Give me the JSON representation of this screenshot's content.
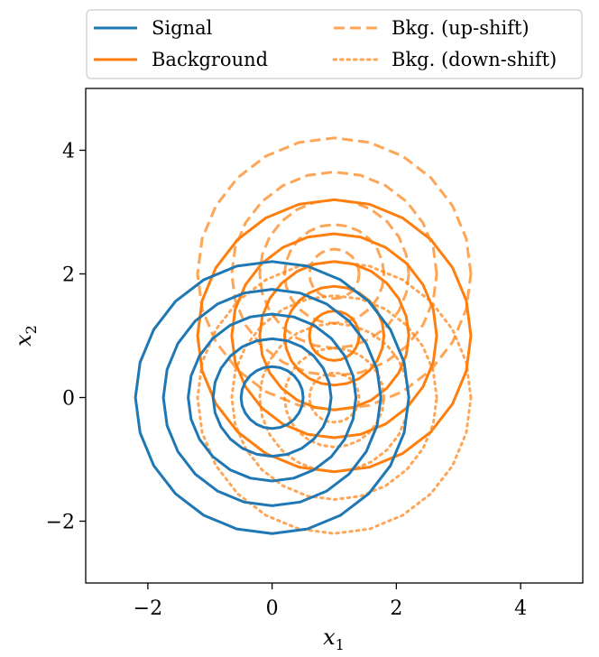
{
  "chart_data": {
    "type": "line",
    "title": "",
    "xlabel": {
      "base": "x",
      "sub": "1"
    },
    "ylabel": {
      "base": "x",
      "sub": "2"
    },
    "xlim": [
      -3,
      5
    ],
    "ylim": [
      -3,
      5
    ],
    "xticks": [
      -2,
      0,
      2,
      4
    ],
    "yticks": [
      -2,
      0,
      2,
      4
    ],
    "xtick_labels": [
      "−2",
      "0",
      "2",
      "4"
    ],
    "ytick_labels": [
      "−2",
      "0",
      "2",
      "4"
    ],
    "grid": false,
    "legend": {
      "placement": "above-plot",
      "columns": 2,
      "entries": [
        {
          "label": "Signal",
          "series": "signal"
        },
        {
          "label": "Background",
          "series": "background"
        },
        {
          "label": "Bkg. (up-shift)",
          "series": "bkg_up"
        },
        {
          "label": "Bkg. (down-shift)",
          "series": "bkg_down"
        }
      ]
    },
    "series": [
      {
        "id": "signal",
        "name": "Signal",
        "color": "#1f77b4",
        "style": "solid",
        "opacity": 1.0,
        "center": [
          0.0,
          0.0
        ],
        "radii": [
          0.5,
          0.95,
          1.35,
          1.75,
          2.2
        ]
      },
      {
        "id": "background",
        "name": "Background",
        "color": "#ff7f0e",
        "style": "solid",
        "opacity": 1.0,
        "center": [
          1.0,
          1.0
        ],
        "radii": [
          0.4,
          0.8,
          1.2,
          1.65,
          2.2
        ]
      },
      {
        "id": "bkg_up",
        "name": "Bkg. (up-shift)",
        "color": "#ff7f0e",
        "style": "dashed",
        "opacity": 0.7,
        "center": [
          1.0,
          2.0
        ],
        "radii": [
          0.4,
          0.8,
          1.2,
          1.65,
          2.2
        ]
      },
      {
        "id": "bkg_down",
        "name": "Bkg. (down-shift)",
        "color": "#ff7f0e",
        "style": "dotted",
        "opacity": 0.7,
        "center": [
          1.0,
          0.0
        ],
        "radii": [
          0.4,
          0.8,
          1.2,
          1.65,
          2.2
        ]
      }
    ]
  }
}
